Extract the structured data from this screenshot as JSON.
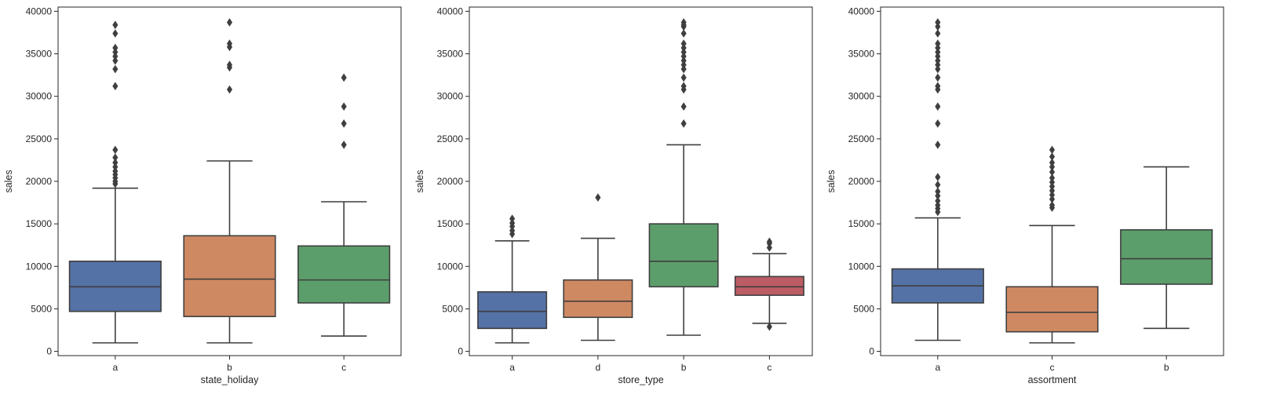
{
  "chart_data": [
    {
      "type": "boxplot",
      "xlabel": "state_holiday",
      "ylabel": "sales",
      "ylim": [
        -500,
        40500
      ],
      "yticks": [
        0,
        5000,
        10000,
        15000,
        20000,
        25000,
        30000,
        35000,
        40000
      ],
      "grid": false,
      "categories": [
        "a",
        "b",
        "c"
      ],
      "boxes": [
        {
          "category": "a",
          "color": "#5572a6",
          "whislo": 1000,
          "q1": 4700,
          "median": 7600,
          "q3": 10600,
          "whishi": 19200,
          "fliers": [
            19700,
            20000,
            20400,
            20800,
            21200,
            21700,
            22200,
            22800,
            23700,
            31200,
            33200,
            34200,
            34700,
            35200,
            35700,
            37400,
            38400
          ]
        },
        {
          "category": "b",
          "color": "#cf8962",
          "whislo": 1000,
          "q1": 4100,
          "median": 8500,
          "q3": 13600,
          "whishi": 22400,
          "fliers": [
            30800,
            33400,
            33700,
            35800,
            36200,
            38700
          ]
        },
        {
          "category": "c",
          "color": "#5c9e6b",
          "whislo": 1800,
          "q1": 5700,
          "median": 8400,
          "q3": 12400,
          "whishi": 17600,
          "fliers": [
            24300,
            26800,
            28800,
            32200
          ]
        }
      ]
    },
    {
      "type": "boxplot",
      "xlabel": "store_type",
      "ylabel": "sales",
      "ylim": [
        -500,
        40500
      ],
      "yticks": [
        0,
        5000,
        10000,
        15000,
        20000,
        25000,
        30000,
        35000,
        40000
      ],
      "grid": false,
      "categories": [
        "a",
        "d",
        "b",
        "c"
      ],
      "boxes": [
        {
          "category": "a",
          "color": "#5572a6",
          "whislo": 1000,
          "q1": 2700,
          "median": 4700,
          "q3": 7000,
          "whishi": 13000,
          "fliers": [
            13800,
            14200,
            14700,
            15100,
            15600
          ]
        },
        {
          "category": "d",
          "color": "#cf8962",
          "whislo": 1300,
          "q1": 4000,
          "median": 5900,
          "q3": 8400,
          "whishi": 13300,
          "fliers": [
            18100
          ]
        },
        {
          "category": "b",
          "color": "#5c9e6b",
          "whislo": 1900,
          "q1": 7600,
          "median": 10600,
          "q3": 15000,
          "whishi": 24300,
          "fliers": [
            26800,
            28800,
            30800,
            31200,
            32200,
            33200,
            33700,
            34200,
            34700,
            35200,
            35700,
            36200,
            37400,
            38200,
            38400,
            38700
          ]
        },
        {
          "category": "c",
          "color": "#bc5c65",
          "whislo": 3300,
          "q1": 6600,
          "median": 7600,
          "q3": 8800,
          "whishi": 11500,
          "fliers": [
            2900,
            12200,
            12700,
            12900
          ]
        }
      ]
    },
    {
      "type": "boxplot",
      "xlabel": "assortment",
      "ylabel": "sales",
      "ylim": [
        -500,
        40500
      ],
      "yticks": [
        0,
        5000,
        10000,
        15000,
        20000,
        25000,
        30000,
        35000,
        40000
      ],
      "grid": false,
      "categories": [
        "a",
        "c",
        "b"
      ],
      "boxes": [
        {
          "category": "a",
          "color": "#5572a6",
          "whislo": 1300,
          "q1": 5700,
          "median": 7700,
          "q3": 9700,
          "whishi": 15700,
          "fliers": [
            16400,
            16800,
            17200,
            17700,
            18300,
            18800,
            19600,
            20500,
            24300,
            26800,
            28800,
            30800,
            31200,
            32200,
            33200,
            33700,
            34200,
            34700,
            35200,
            35700,
            36200,
            37400,
            38200,
            38700
          ]
        },
        {
          "category": "c",
          "color": "#cf8962",
          "whislo": 1000,
          "q1": 2300,
          "median": 4600,
          "q3": 7600,
          "whishi": 14800,
          "fliers": [
            16900,
            17200,
            17900,
            18400,
            18900,
            19400,
            19900,
            20400,
            21100,
            21700,
            22200,
            22900,
            23700
          ]
        },
        {
          "category": "b",
          "color": "#5c9e6b",
          "whislo": 2700,
          "q1": 7900,
          "median": 10900,
          "q3": 14300,
          "whishi": 21700,
          "fliers": []
        }
      ]
    }
  ]
}
